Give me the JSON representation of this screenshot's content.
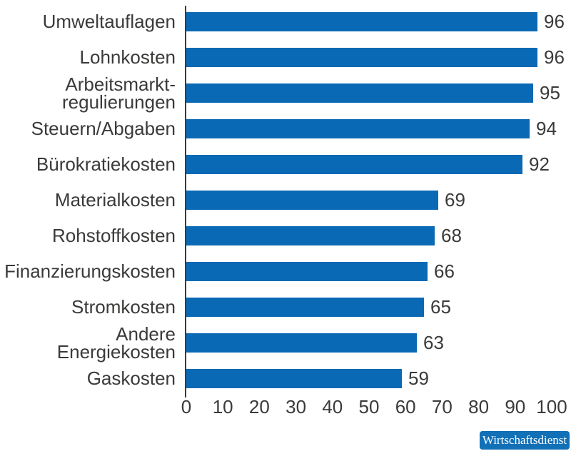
{
  "chart_data": {
    "type": "bar",
    "orientation": "horizontal",
    "title": "",
    "categories": [
      "Umweltauflagen",
      "Lohnkosten",
      "Arbeitsmarkt-\nregulierungen",
      "Steuern/Abgaben",
      "Bürokratiekosten",
      "Materialkosten",
      "Rohstoffkosten",
      "Finanzierungskosten",
      "Stromkosten",
      "Andere Energiekosten",
      "Gaskosten"
    ],
    "values": [
      96,
      96,
      95,
      94,
      92,
      69,
      68,
      66,
      65,
      63,
      59
    ],
    "xlabel": "",
    "ylabel": "",
    "xlim": [
      0,
      100
    ],
    "x_ticks": [
      "0",
      "10",
      "20",
      "30",
      "40",
      "50",
      "60",
      "70",
      "80",
      "90",
      "100"
    ],
    "grid": false,
    "legend": false,
    "value_labels_shown": true,
    "bar_color": "#0a69b4",
    "text_color": "#3a3a39",
    "axis_color": "#3a3a39"
  },
  "badge": {
    "label": "Wirtschaftsdienst",
    "bg": "#1170b6",
    "fg": "#ffffff"
  }
}
